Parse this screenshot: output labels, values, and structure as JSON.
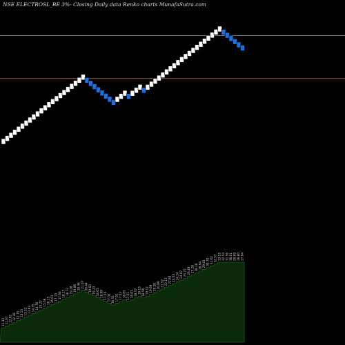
{
  "chart_data": {
    "type": "renko",
    "title": "NSE ELECTROSL_BE 3%-  Closing Daily data  Renko  charts MunafaSutra.com",
    "bricks": [
      {
        "value": 11.33,
        "dir": "up"
      },
      {
        "value": 11.67,
        "dir": "up"
      },
      {
        "value": 12.02,
        "dir": "up"
      },
      {
        "value": 12.38,
        "dir": "up"
      },
      {
        "value": 12.75,
        "dir": "up"
      },
      {
        "value": 13.13,
        "dir": "up"
      },
      {
        "value": 13.52,
        "dir": "up"
      },
      {
        "value": 13.93,
        "dir": "up"
      },
      {
        "value": 14.35,
        "dir": "up"
      },
      {
        "value": 14.78,
        "dir": "up"
      },
      {
        "value": 15.22,
        "dir": "up"
      },
      {
        "value": 15.68,
        "dir": "up"
      },
      {
        "value": 16.15,
        "dir": "up"
      },
      {
        "value": 16.63,
        "dir": "up"
      },
      {
        "value": 17.13,
        "dir": "up"
      },
      {
        "value": 17.64,
        "dir": "up"
      },
      {
        "value": 18.17,
        "dir": "up"
      },
      {
        "value": 18.72,
        "dir": "up"
      },
      {
        "value": 19.28,
        "dir": "up"
      },
      {
        "value": 19.86,
        "dir": "up"
      },
      {
        "value": 20.46,
        "dir": "up"
      },
      {
        "value": 21.07,
        "dir": "up"
      },
      {
        "value": 20.44,
        "dir": "down"
      },
      {
        "value": 19.83,
        "dir": "down"
      },
      {
        "value": 19.23,
        "dir": "down"
      },
      {
        "value": 18.65,
        "dir": "down"
      },
      {
        "value": 18.09,
        "dir": "down"
      },
      {
        "value": 17.55,
        "dir": "down"
      },
      {
        "value": 17.02,
        "dir": "down"
      },
      {
        "value": 16.51,
        "dir": "down"
      },
      {
        "value": 17.01,
        "dir": "up"
      },
      {
        "value": 17.52,
        "dir": "up"
      },
      {
        "value": 18.05,
        "dir": "up"
      },
      {
        "value": 17.51,
        "dir": "down"
      },
      {
        "value": 18.03,
        "dir": "up"
      },
      {
        "value": 18.57,
        "dir": "up"
      },
      {
        "value": 19.13,
        "dir": "up"
      },
      {
        "value": 18.56,
        "dir": "down"
      },
      {
        "value": 19.12,
        "dir": "up"
      },
      {
        "value": 19.69,
        "dir": "up"
      },
      {
        "value": 20.28,
        "dir": "up"
      },
      {
        "value": 20.89,
        "dir": "up"
      },
      {
        "value": 21.52,
        "dir": "up"
      },
      {
        "value": 22.17,
        "dir": "up"
      },
      {
        "value": 22.84,
        "dir": "up"
      },
      {
        "value": 23.53,
        "dir": "up"
      },
      {
        "value": 24.24,
        "dir": "up"
      },
      {
        "value": 24.97,
        "dir": "up"
      },
      {
        "value": 25.72,
        "dir": "up"
      },
      {
        "value": 26.49,
        "dir": "up"
      },
      {
        "value": 27.28,
        "dir": "up"
      },
      {
        "value": 28.1,
        "dir": "up"
      },
      {
        "value": 28.94,
        "dir": "up"
      },
      {
        "value": 29.81,
        "dir": "up"
      },
      {
        "value": 30.7,
        "dir": "up"
      },
      {
        "value": 31.62,
        "dir": "up"
      },
      {
        "value": 32.57,
        "dir": "up"
      },
      {
        "value": 33.55,
        "dir": "up"
      },
      {
        "value": 32.54,
        "dir": "down"
      },
      {
        "value": 31.56,
        "dir": "down"
      },
      {
        "value": 30.61,
        "dir": "down"
      },
      {
        "value": 29.69,
        "dir": "down"
      },
      {
        "value": 28.8,
        "dir": "down"
      },
      {
        "value": 27.94,
        "dir": "down"
      }
    ],
    "reference_lines": [
      31.5,
      20.8
    ],
    "colors": {
      "background": "#000000",
      "up_brick": "#ffffff",
      "down_brick": "#1e6fe0",
      "reference_line": "#b85a1a",
      "volume_fill": "#0a2a0a",
      "volume_edge": "#1f5a1f",
      "label": "#d8d8d8"
    }
  }
}
